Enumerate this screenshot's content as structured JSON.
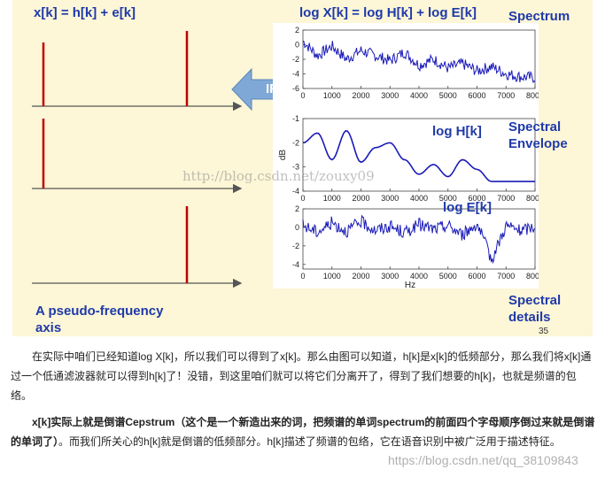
{
  "slide": {
    "left_title": "x[k] = h[k] + e[k]",
    "right_title": "log X[k] = log H[k] + log E[k]",
    "spectrum_label": "Spectrum",
    "envelope_label_1": "Spectral",
    "envelope_label_2": "Envelope",
    "logh_label": "log H[k]",
    "loge_label": "log E[k]",
    "details_label_1": "Spectral",
    "details_label_2": "details",
    "pseudo_label_1": "A pseudo-frequency",
    "pseudo_label_2": "axis",
    "ifft_label": "IFFT",
    "page_number": "35",
    "watermark": "http://blog.csdn.net/zouxy09",
    "colors": {
      "accent": "#1f3aa8",
      "slide_bg": "#fdf6d7",
      "stem": "#c00000",
      "curve": "#1a1ab8",
      "ifft": "#7fa8d6"
    }
  },
  "chart_data": [
    {
      "type": "line",
      "title": "Spectrum",
      "xlabel": "",
      "ylabel": "",
      "x_ticks": [
        "0",
        "1000",
        "2000",
        "3000",
        "4000",
        "5000",
        "6000",
        "7000",
        "8000"
      ],
      "y_ticks": [
        "2",
        "0",
        "-2",
        "-4",
        "-6"
      ],
      "xlim": [
        0,
        8000
      ],
      "ylim": [
        -6,
        2
      ],
      "x": [
        0,
        500,
        1000,
        1500,
        2000,
        2500,
        3000,
        3500,
        4000,
        4500,
        5000,
        5500,
        6000,
        6500,
        7000,
        7500,
        8000
      ],
      "values": [
        0.5,
        -1.5,
        -0.2,
        -2.0,
        -0.8,
        -1.5,
        -2.2,
        -1.0,
        -2.8,
        -2.0,
        -3.2,
        -2.6,
        -3.6,
        -3.0,
        -4.0,
        -4.4,
        -4.5
      ]
    },
    {
      "type": "line",
      "title": "log H[k]",
      "xlabel": "",
      "ylabel": "dB",
      "x_ticks": [
        "0",
        "1000",
        "2000",
        "3000",
        "4000",
        "5000",
        "6000",
        "7000",
        "8000"
      ],
      "y_ticks": [
        "-1",
        "-2",
        "-3",
        "-4"
      ],
      "xlim": [
        0,
        8000
      ],
      "ylim": [
        -4,
        -1
      ],
      "x": [
        0,
        500,
        1000,
        1500,
        2000,
        2500,
        3000,
        3500,
        4000,
        4500,
        5000,
        5500,
        6000,
        6500,
        7000,
        7500,
        8000
      ],
      "values": [
        -2.0,
        -1.6,
        -2.7,
        -1.5,
        -2.8,
        -2.2,
        -2.0,
        -2.7,
        -3.3,
        -2.9,
        -3.4,
        -2.7,
        -3.1,
        -3.6,
        -3.6,
        -3.6,
        -3.6
      ]
    },
    {
      "type": "line",
      "title": "log E[k]",
      "xlabel": "Hz",
      "ylabel": "",
      "x_ticks": [
        "0",
        "1000",
        "2000",
        "3000",
        "4000",
        "5000",
        "6000",
        "7000",
        "8000"
      ],
      "y_ticks": [
        "2",
        "0",
        "-2",
        "-4"
      ],
      "xlim": [
        0,
        8000
      ],
      "ylim": [
        -4.5,
        2
      ],
      "x": [
        0,
        500,
        1000,
        1500,
        2000,
        2500,
        3000,
        3500,
        4000,
        4500,
        5000,
        5500,
        6000,
        6500,
        7000,
        7500,
        8000
      ],
      "values": [
        0.2,
        -0.5,
        0.5,
        -0.4,
        0.6,
        -0.3,
        0.1,
        -0.6,
        0.3,
        -0.2,
        0.2,
        -0.8,
        0.4,
        -3.5,
        0.2,
        -0.4,
        0.1
      ]
    }
  ],
  "text": {
    "para1": "在实际中咱们已经知道log X[k]，所以我们可以得到了x[k]。那么由图可以知道，h[k]是x[k]的低频部分，那么我们将x[k]通过一个低通滤波器就可以得到h[k]了！没错，到这里咱们就可以将它们分离开了，得到了我们想要的h[k]，也就是频谱的包络。",
    "para2_bold": "x[k]实际上就是倒谱Cepstrum（这个是一个新造出来的词，把频谱的单词spectrum的前面四个字母顺序倒过来就是倒谱的单词了）",
    "para2_rest": "。而我们所关心的h[k]就是倒谱的低频部分。h[k]描述了频谱的包络，它在语音识别中被广泛用于描述特征。"
  },
  "bottom_watermark": "https://blog.csdn.net/qq_38109843"
}
